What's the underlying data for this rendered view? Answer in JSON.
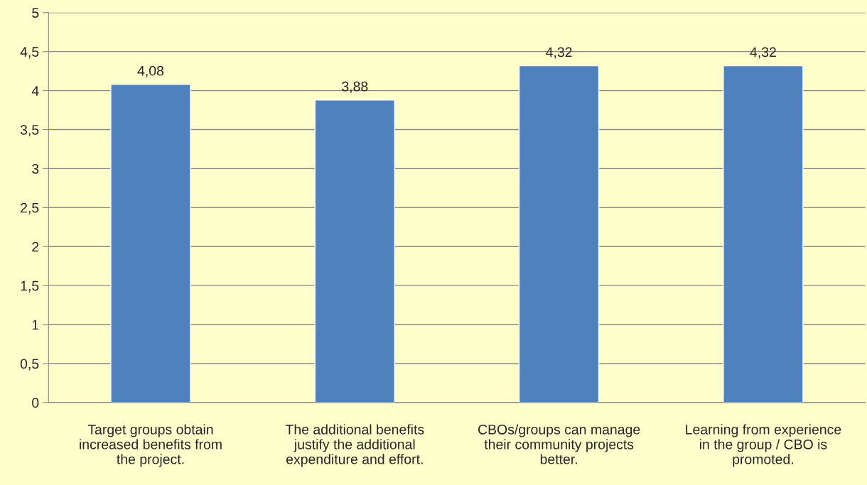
{
  "chart_data": {
    "type": "bar",
    "categories": [
      "Target groups obtain\nincreased benefits from\nthe project.",
      "The additional benefits\njustify the additional\nexpenditure and effort.",
      "CBOs/groups can manage\ntheir community projects\nbetter.",
      "Learning from experience\nin the group / CBO is\npromoted."
    ],
    "values": [
      4.08,
      3.88,
      4.32,
      4.32
    ],
    "value_labels": [
      "4,08",
      "3,88",
      "4,32",
      "4,32"
    ],
    "color": "#4f81bd",
    "ylim": [
      0,
      5
    ],
    "yticks": [
      0,
      {
        "value": 0.5,
        "label": "0,5"
      },
      1,
      {
        "value": 1.5,
        "label": "1,5"
      },
      2,
      {
        "value": 2.5,
        "label": "2,5"
      },
      3,
      {
        "value": 3.5,
        "label": "3,5"
      },
      4,
      {
        "value": 4.5,
        "label": "4,5"
      },
      5
    ],
    "grid": "y",
    "legend": false
  }
}
